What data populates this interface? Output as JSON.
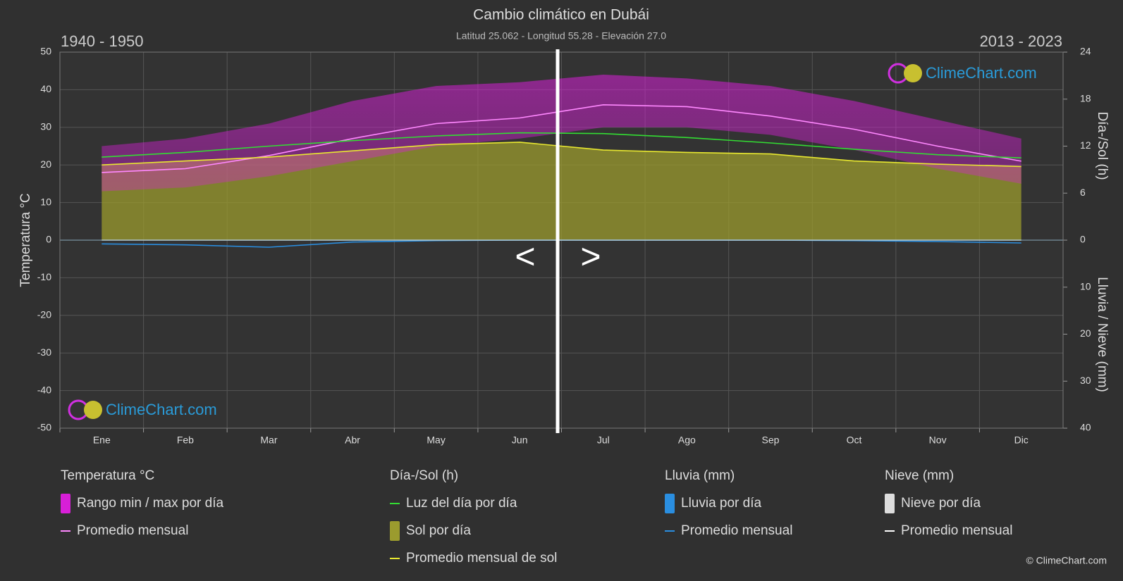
{
  "chart_data": {
    "type": "line",
    "title": "Cambio climático en Dubái",
    "subtitle": "Latitud 25.062 - Longitud 55.28 - Elevación 27.0",
    "period_left": "1940 - 1950",
    "period_right": "2013 - 2023",
    "nav": [
      "<",
      ">"
    ],
    "watermark": "ClimeChart.com",
    "copyright": "© ClimeChart.com",
    "y_label": "Temperatura °C",
    "y2_label": "Día-/Sol (h)",
    "y3_label": "Lluvia / Nieve (mm)",
    "categories": [
      "Ene",
      "Feb",
      "Mar",
      "Abr",
      "May",
      "Jun",
      "Jul",
      "Ago",
      "Sep",
      "Oct",
      "Nov",
      "Dic"
    ],
    "ylim": [
      -50,
      50
    ],
    "yticks": [
      -50,
      -40,
      -30,
      -20,
      -10,
      0,
      10,
      20,
      30,
      40,
      50
    ],
    "y2lim": [
      0,
      24
    ],
    "y2ticks": [
      0,
      6,
      12,
      18,
      24
    ],
    "y3lim": [
      0,
      40
    ],
    "y3ticks": [
      10,
      20,
      30,
      40
    ],
    "grid": true,
    "groups": [
      {
        "title": "Temperatura °C",
        "series": [
          {
            "name": "Rango min / max por día",
            "type": "band",
            "color": "#d81fd8",
            "values": [
              25,
              27,
              31,
              37,
              41,
              42,
              44,
              43,
              41,
              37,
              32,
              27
            ],
            "low": [
              13,
              14,
              17,
              21,
              25,
              27,
              30,
              30,
              28,
              24,
              19,
              15
            ]
          },
          {
            "name": "Promedio mensual",
            "type": "line",
            "color": "#ff88ff",
            "values": [
              18,
              19,
              22.5,
              27,
              31,
              32.5,
              36,
              35.5,
              33,
              29.5,
              25,
              21
            ]
          }
        ]
      },
      {
        "title": "Día-/Sol (h)",
        "series": [
          {
            "name": "Luz del día por día",
            "type": "line",
            "axis": "y2",
            "color": "#33dd33",
            "values": [
              10.6,
              11.2,
              12,
              12.7,
              13.3,
              13.7,
              13.6,
              13.1,
              12.4,
              11.6,
              10.9,
              10.5
            ]
          },
          {
            "name": "Sol por día",
            "type": "area",
            "axis": "y2",
            "color": "#9b9b2e",
            "values": [
              9.6,
              10.1,
              10.6,
              11.4,
              12.2,
              12.5,
              11.5,
              11.2,
              11,
              10.1,
              9.7,
              9.4
            ]
          },
          {
            "name": "Promedio mensual de sol",
            "type": "line",
            "axis": "y2",
            "color": "#e8e830",
            "values": [
              9.6,
              10.1,
              10.6,
              11.4,
              12.2,
              12.5,
              11.5,
              11.2,
              11,
              10.1,
              9.7,
              9.4
            ]
          }
        ]
      },
      {
        "title": "Lluvia (mm)",
        "series": [
          {
            "name": "Lluvia por día",
            "type": "swatch",
            "color": "#2a8ee0"
          },
          {
            "name": "Promedio mensual",
            "type": "line",
            "axis": "y3",
            "color": "#2a8ee0",
            "values": [
              0.8,
              1,
              1.5,
              0.4,
              0.1,
              0,
              0,
              0,
              0,
              0.1,
              0.3,
              0.6
            ]
          }
        ]
      },
      {
        "title": "Nieve (mm)",
        "series": [
          {
            "name": "Nieve por día",
            "type": "swatch",
            "color": "#dddddd"
          },
          {
            "name": "Promedio mensual",
            "type": "line",
            "axis": "y3",
            "color": "#ffffff",
            "values": [
              0,
              0,
              0,
              0,
              0,
              0,
              0,
              0,
              0,
              0,
              0,
              0
            ]
          }
        ]
      }
    ]
  }
}
